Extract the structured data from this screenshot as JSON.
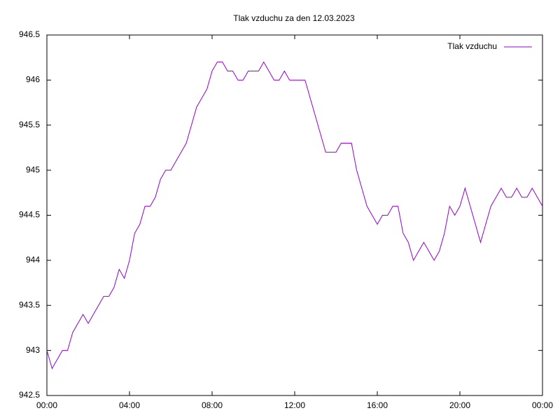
{
  "chart_data": {
    "type": "line",
    "title": "Tlak vzduchu za den 12.03.2023",
    "x": [
      0,
      0.25,
      0.5,
      0.75,
      1,
      1.25,
      1.5,
      1.75,
      2,
      2.25,
      2.5,
      2.75,
      3,
      3.25,
      3.5,
      3.75,
      4,
      4.25,
      4.5,
      4.75,
      5,
      5.25,
      5.5,
      5.75,
      6,
      6.25,
      6.5,
      6.75,
      7,
      7.25,
      7.5,
      7.75,
      8,
      8.25,
      8.5,
      8.75,
      9,
      9.25,
      9.5,
      9.75,
      10,
      10.25,
      10.5,
      10.75,
      11,
      11.25,
      11.5,
      11.75,
      12,
      12.25,
      12.5,
      12.75,
      13,
      13.25,
      13.5,
      13.75,
      14,
      14.25,
      14.5,
      14.75,
      15,
      15.25,
      15.5,
      15.75,
      16,
      16.25,
      16.5,
      16.75,
      17,
      17.25,
      17.5,
      17.75,
      18,
      18.25,
      18.5,
      18.75,
      19,
      19.25,
      19.5,
      19.75,
      20,
      20.25,
      20.5,
      20.75,
      21,
      21.25,
      21.5,
      21.75,
      22,
      22.25,
      22.5,
      22.75,
      23,
      23.25,
      23.5,
      23.75,
      24
    ],
    "series": [
      {
        "name": "Tlak vzduchu",
        "color": "#9400d3",
        "values": [
          943.0,
          942.8,
          942.9,
          943.0,
          943.0,
          943.2,
          943.3,
          943.4,
          943.3,
          943.4,
          943.5,
          943.6,
          943.6,
          943.7,
          943.9,
          943.8,
          944.0,
          944.3,
          944.4,
          944.6,
          944.6,
          944.7,
          944.9,
          945.0,
          945.0,
          945.1,
          945.2,
          945.3,
          945.5,
          945.7,
          945.8,
          945.9,
          946.1,
          946.2,
          946.2,
          946.1,
          946.1,
          946.0,
          946.0,
          946.1,
          946.1,
          946.1,
          946.2,
          946.1,
          946.0,
          946.0,
          946.1,
          946.0,
          946.0,
          946.0,
          946.0,
          945.8,
          945.6,
          945.4,
          945.2,
          945.2,
          945.2,
          945.3,
          945.3,
          945.3,
          945.0,
          944.8,
          944.6,
          944.5,
          944.4,
          944.5,
          944.5,
          944.6,
          944.6,
          944.3,
          944.2,
          944.0,
          944.1,
          944.2,
          944.1,
          944.0,
          944.1,
          944.3,
          944.6,
          944.5,
          944.6,
          944.8,
          944.6,
          944.4,
          944.2,
          944.4,
          944.6,
          944.7,
          944.8,
          944.7,
          944.7,
          944.8,
          944.7,
          944.7,
          944.8,
          944.7,
          944.6
        ]
      }
    ],
    "xlim": [
      0,
      24
    ],
    "xticks": [
      {
        "value": 0,
        "label": "00:00"
      },
      {
        "value": 4,
        "label": "04:00"
      },
      {
        "value": 8,
        "label": "08:00"
      },
      {
        "value": 12,
        "label": "12:00"
      },
      {
        "value": 16,
        "label": "16:00"
      },
      {
        "value": 20,
        "label": "20:00"
      },
      {
        "value": 24,
        "label": "00:00"
      }
    ],
    "ylim": [
      942.5,
      946.5
    ],
    "yticks": [
      942.5,
      943,
      943.5,
      944,
      944.5,
      945,
      945.5,
      946,
      946.5
    ],
    "grid": false,
    "legend": "top-right"
  }
}
